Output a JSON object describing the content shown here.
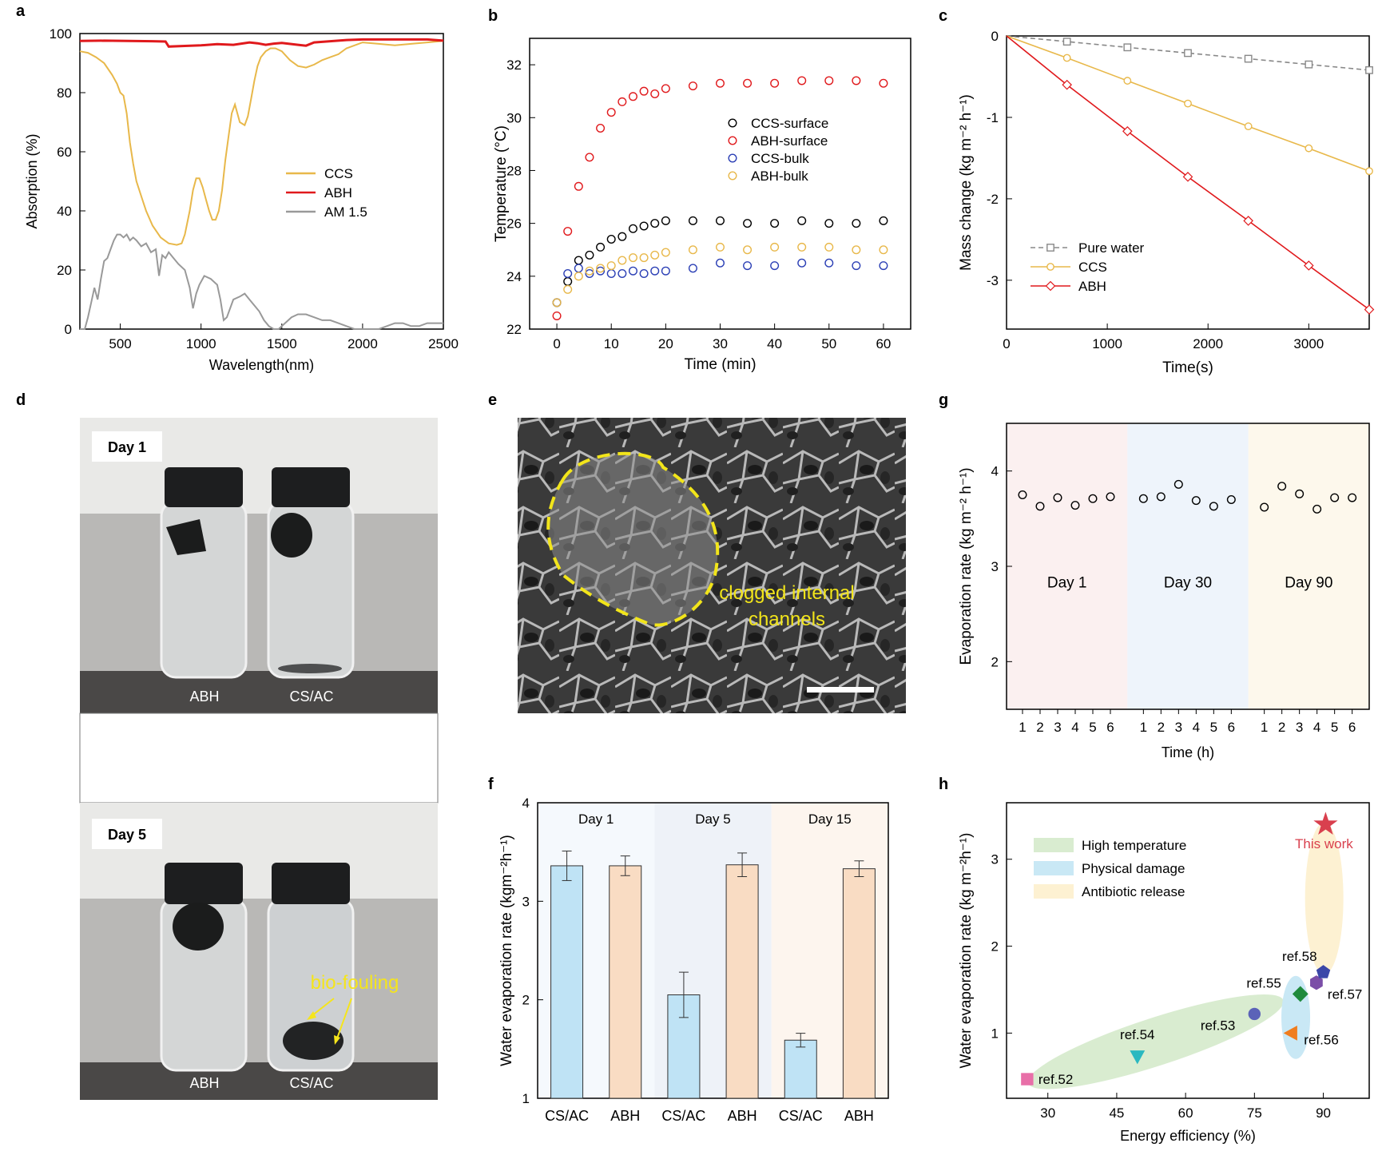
{
  "panels": {
    "a": "a",
    "b": "b",
    "c": "c",
    "d": "d",
    "e": "e",
    "f": "f",
    "g": "g",
    "h": "h"
  },
  "photos": {
    "d": {
      "top_day": "Day 1",
      "bottom_day": "Day 5",
      "vial_left": "ABH",
      "vial_right": "CS/AC",
      "fouling_label": "bio-fouling"
    },
    "e": {
      "annotation_line1": "clogged internal",
      "annotation_line2": "channels"
    }
  },
  "chart_data": [
    {
      "id": "a",
      "type": "line",
      "xlabel": "Wavelength(nm)",
      "ylabel": "Absorption (%)",
      "xlim": [
        250,
        2500
      ],
      "ylim": [
        0,
        100
      ],
      "xticks": [
        500,
        1000,
        1500,
        2000,
        2500
      ],
      "yticks": [
        0,
        20,
        40,
        60,
        80,
        100
      ],
      "series": [
        {
          "name": "CCS",
          "color": "#e8b84a",
          "x": [
            250,
            300,
            350,
            400,
            450,
            480,
            500,
            520,
            540,
            560,
            580,
            600,
            630,
            660,
            700,
            750,
            800,
            850,
            880,
            900,
            930,
            950,
            970,
            990,
            1010,
            1030,
            1050,
            1070,
            1090,
            1110,
            1130,
            1150,
            1170,
            1190,
            1210,
            1240,
            1270,
            1290,
            1310,
            1330,
            1350,
            1370,
            1400,
            1430,
            1460,
            1500,
            1550,
            1600,
            1650,
            1700,
            1750,
            1800,
            1850,
            1900,
            2000,
            2100,
            2200,
            2300,
            2400,
            2500
          ],
          "y": [
            94,
            93.5,
            92,
            90,
            86,
            83,
            80,
            79,
            73,
            63,
            56,
            50,
            45,
            40,
            35,
            31,
            29,
            28.5,
            29,
            32,
            40,
            47,
            51,
            51,
            48,
            44,
            40,
            37,
            37,
            40,
            47,
            57,
            65,
            73,
            76,
            70,
            69,
            72,
            78,
            84,
            89,
            92,
            94,
            95,
            95,
            94,
            91,
            89,
            88.5,
            89.5,
            91,
            92,
            93,
            95,
            97,
            96.5,
            96,
            96.5,
            97,
            97.5
          ]
        },
        {
          "name": "ABH",
          "color": "#e0191c",
          "x": [
            250,
            400,
            700,
            780,
            800,
            900,
            1000,
            1100,
            1200,
            1300,
            1350,
            1400,
            1450,
            1500,
            1600,
            1650,
            1700,
            1800,
            1900,
            2000,
            2200,
            2400,
            2500
          ],
          "y": [
            97.5,
            97.6,
            97.4,
            97.3,
            95.6,
            95.8,
            96,
            96.4,
            96.2,
            97,
            96.7,
            96.2,
            96.6,
            96.8,
            96.2,
            95.9,
            97,
            97.4,
            97.8,
            98,
            98,
            98,
            97.6
          ]
        },
        {
          "name": "AM 1.5",
          "color": "#999999",
          "x": [
            250,
            280,
            300,
            320,
            340,
            360,
            380,
            400,
            420,
            440,
            460,
            480,
            500,
            520,
            540,
            560,
            580,
            600,
            630,
            660,
            690,
            720,
            740,
            760,
            780,
            800,
            830,
            860,
            900,
            930,
            950,
            970,
            990,
            1020,
            1060,
            1100,
            1120,
            1140,
            1160,
            1200,
            1240,
            1270,
            1300,
            1330,
            1360,
            1390,
            1420,
            1450,
            1480,
            1520,
            1560,
            1600,
            1650,
            1700,
            1750,
            1800,
            1850,
            1900,
            1950,
            2000,
            2030,
            2060,
            2100,
            2150,
            2200,
            2250,
            2300,
            2350,
            2400,
            2450,
            2500
          ],
          "y": [
            0,
            0,
            4,
            9,
            14,
            10,
            17,
            23,
            24,
            27,
            30,
            32,
            32,
            31,
            32,
            30,
            31,
            30,
            28,
            29,
            26,
            27,
            18,
            25,
            24,
            26,
            24,
            22,
            20,
            14,
            7,
            12,
            15,
            18,
            17,
            15,
            10,
            3,
            4,
            10,
            11,
            12,
            10,
            8,
            6,
            3,
            1,
            0,
            0,
            2,
            4,
            5,
            5,
            4,
            3,
            3,
            2,
            1,
            0,
            0,
            0,
            0,
            0,
            1,
            2,
            2,
            1,
            1,
            2,
            2,
            2
          ]
        }
      ]
    },
    {
      "id": "b",
      "type": "scatter",
      "xlabel": "Time (min)",
      "ylabel": "Temperature (°C)",
      "xlim": [
        -5,
        65
      ],
      "ylim": [
        22,
        33
      ],
      "xticks": [
        0,
        10,
        20,
        30,
        40,
        50,
        60
      ],
      "yticks": [
        22,
        24,
        26,
        28,
        30,
        32
      ],
      "x": [
        0,
        2,
        4,
        6,
        8,
        10,
        12,
        14,
        16,
        18,
        20,
        25,
        30,
        35,
        40,
        45,
        50,
        55,
        60
      ],
      "series": [
        {
          "name": "CCS-surface",
          "color": "#000000",
          "values": [
            23.0,
            23.8,
            24.6,
            24.8,
            25.1,
            25.4,
            25.5,
            25.8,
            25.9,
            26.0,
            26.1,
            26.1,
            26.1,
            26.0,
            26.0,
            26.1,
            26.0,
            26.0,
            26.1
          ]
        },
        {
          "name": "ABH-surface",
          "color": "#e0191c",
          "values": [
            22.5,
            25.7,
            27.4,
            28.5,
            29.6,
            30.2,
            30.6,
            30.8,
            31.0,
            30.9,
            31.1,
            31.2,
            31.3,
            31.3,
            31.3,
            31.4,
            31.4,
            31.4,
            31.3
          ]
        },
        {
          "name": "CCS-bulk",
          "color": "#2b3fb5",
          "values": [
            23.0,
            24.1,
            24.3,
            24.1,
            24.2,
            24.1,
            24.1,
            24.2,
            24.1,
            24.2,
            24.2,
            24.3,
            24.5,
            24.4,
            24.4,
            24.5,
            24.5,
            24.4,
            24.4
          ]
        },
        {
          "name": "ABH-bulk",
          "color": "#e8b84a",
          "values": [
            23.0,
            23.5,
            24.0,
            24.2,
            24.3,
            24.4,
            24.6,
            24.7,
            24.7,
            24.8,
            24.9,
            25.0,
            25.1,
            25.0,
            25.1,
            25.1,
            25.1,
            25.0,
            25.0
          ]
        }
      ]
    },
    {
      "id": "c",
      "type": "line",
      "xlabel": "Time(s)",
      "ylabel": "Mass change (kg m⁻² h⁻¹)",
      "xlim": [
        0,
        3600
      ],
      "ylim": [
        -3.6,
        0
      ],
      "xticks": [
        0,
        1000,
        2000,
        3000
      ],
      "yticks": [
        0,
        -1,
        -2,
        -3
      ],
      "x": [
        0,
        600,
        1200,
        1800,
        2400,
        3000,
        3600
      ],
      "series": [
        {
          "name": "Pure water",
          "color": "#888888",
          "marker": "square",
          "values": [
            0,
            -0.07,
            -0.14,
            -0.21,
            -0.28,
            -0.35,
            -0.42
          ]
        },
        {
          "name": "CCS",
          "color": "#e8b84a",
          "marker": "circle",
          "values": [
            0,
            -0.27,
            -0.55,
            -0.83,
            -1.11,
            -1.38,
            -1.66
          ]
        },
        {
          "name": "ABH",
          "color": "#e0191c",
          "marker": "diamond",
          "values": [
            0,
            -0.6,
            -1.17,
            -1.73,
            -2.27,
            -2.82,
            -3.36
          ]
        }
      ]
    },
    {
      "id": "f",
      "type": "bar",
      "ylabel": "Water evaporation rate (kgm⁻²h⁻¹)",
      "ylim": [
        1,
        4
      ],
      "yticks": [
        1,
        2,
        3,
        4
      ],
      "groups": [
        "Day 1",
        "Day 5",
        "Day 15"
      ],
      "categories": [
        "CS/AC",
        "ABH",
        "CS/AC",
        "ABH",
        "CS/AC",
        "ABH"
      ],
      "values": [
        3.36,
        3.36,
        2.05,
        3.37,
        1.59,
        3.33
      ],
      "errors": [
        0.15,
        0.1,
        0.23,
        0.12,
        0.07,
        0.08
      ],
      "colors": [
        "#bfe3f5",
        "#f9dcc3",
        "#bfe3f5",
        "#f9dcc3",
        "#bfe3f5",
        "#f9dcc3"
      ]
    },
    {
      "id": "g",
      "type": "scatter",
      "xlabel": "Time (h)",
      "ylabel": "Evaporation rate (kg m⁻² h⁻¹)",
      "ylim": [
        1.5,
        4.5
      ],
      "yticks": [
        2,
        3,
        4
      ],
      "x_ticklabels": [
        "1",
        "2",
        "3",
        "4",
        "5",
        "6",
        "1",
        "2",
        "3",
        "4",
        "5",
        "6",
        "1",
        "2",
        "3",
        "4",
        "5",
        "6"
      ],
      "groups": [
        {
          "name": "Day 1",
          "color": "#fbf0f0",
          "values": [
            3.75,
            3.63,
            3.72,
            3.64,
            3.71,
            3.73
          ]
        },
        {
          "name": "Day 30",
          "color": "#eef4fb",
          "values": [
            3.71,
            3.73,
            3.86,
            3.69,
            3.63,
            3.7
          ]
        },
        {
          "name": "Day 90",
          "color": "#fdf8ec",
          "values": [
            3.62,
            3.84,
            3.76,
            3.6,
            3.72,
            3.72
          ]
        }
      ]
    },
    {
      "id": "h",
      "type": "scatter",
      "xlabel": "Energy efficiency (%)",
      "ylabel": "Water evaporation rate (kg m⁻²h⁻¹)",
      "xlim": [
        21,
        100
      ],
      "ylim": [
        0.25,
        3.65
      ],
      "xticks": [
        30,
        45,
        60,
        75,
        90
      ],
      "yticks": [
        1,
        2,
        3
      ],
      "legend": [
        {
          "name": "High temperature",
          "color": "#d9ecd0"
        },
        {
          "name": "Physical damage",
          "color": "#c9e8f5"
        },
        {
          "name": "Antibiotic release",
          "color": "#fdf1d2"
        }
      ],
      "points": [
        {
          "label": "ref.52",
          "x": 25.5,
          "y": 0.47,
          "marker": "square",
          "color": "#e86fa8"
        },
        {
          "label": "ref.54",
          "x": 49.5,
          "y": 0.73,
          "marker": "triangle-down",
          "color": "#2ab8c0"
        },
        {
          "label": "ref.53",
          "x": 75,
          "y": 1.22,
          "marker": "circle",
          "color": "#5b63b8"
        },
        {
          "label": "ref.55",
          "x": 85,
          "y": 1.45,
          "marker": "diamond",
          "color": "#1e8a3c"
        },
        {
          "label": "ref.56",
          "x": 83,
          "y": 1.0,
          "marker": "triangle-left",
          "color": "#f07d1e"
        },
        {
          "label": "ref.57",
          "x": 88.5,
          "y": 1.58,
          "marker": "hexagon",
          "color": "#7b4ea8"
        },
        {
          "label": "ref.58",
          "x": 90,
          "y": 1.7,
          "marker": "pentagon",
          "color": "#3b47a8"
        },
        {
          "label": "This work",
          "x": 90.5,
          "y": 3.4,
          "marker": "star",
          "color": "#d9404e"
        }
      ]
    }
  ]
}
